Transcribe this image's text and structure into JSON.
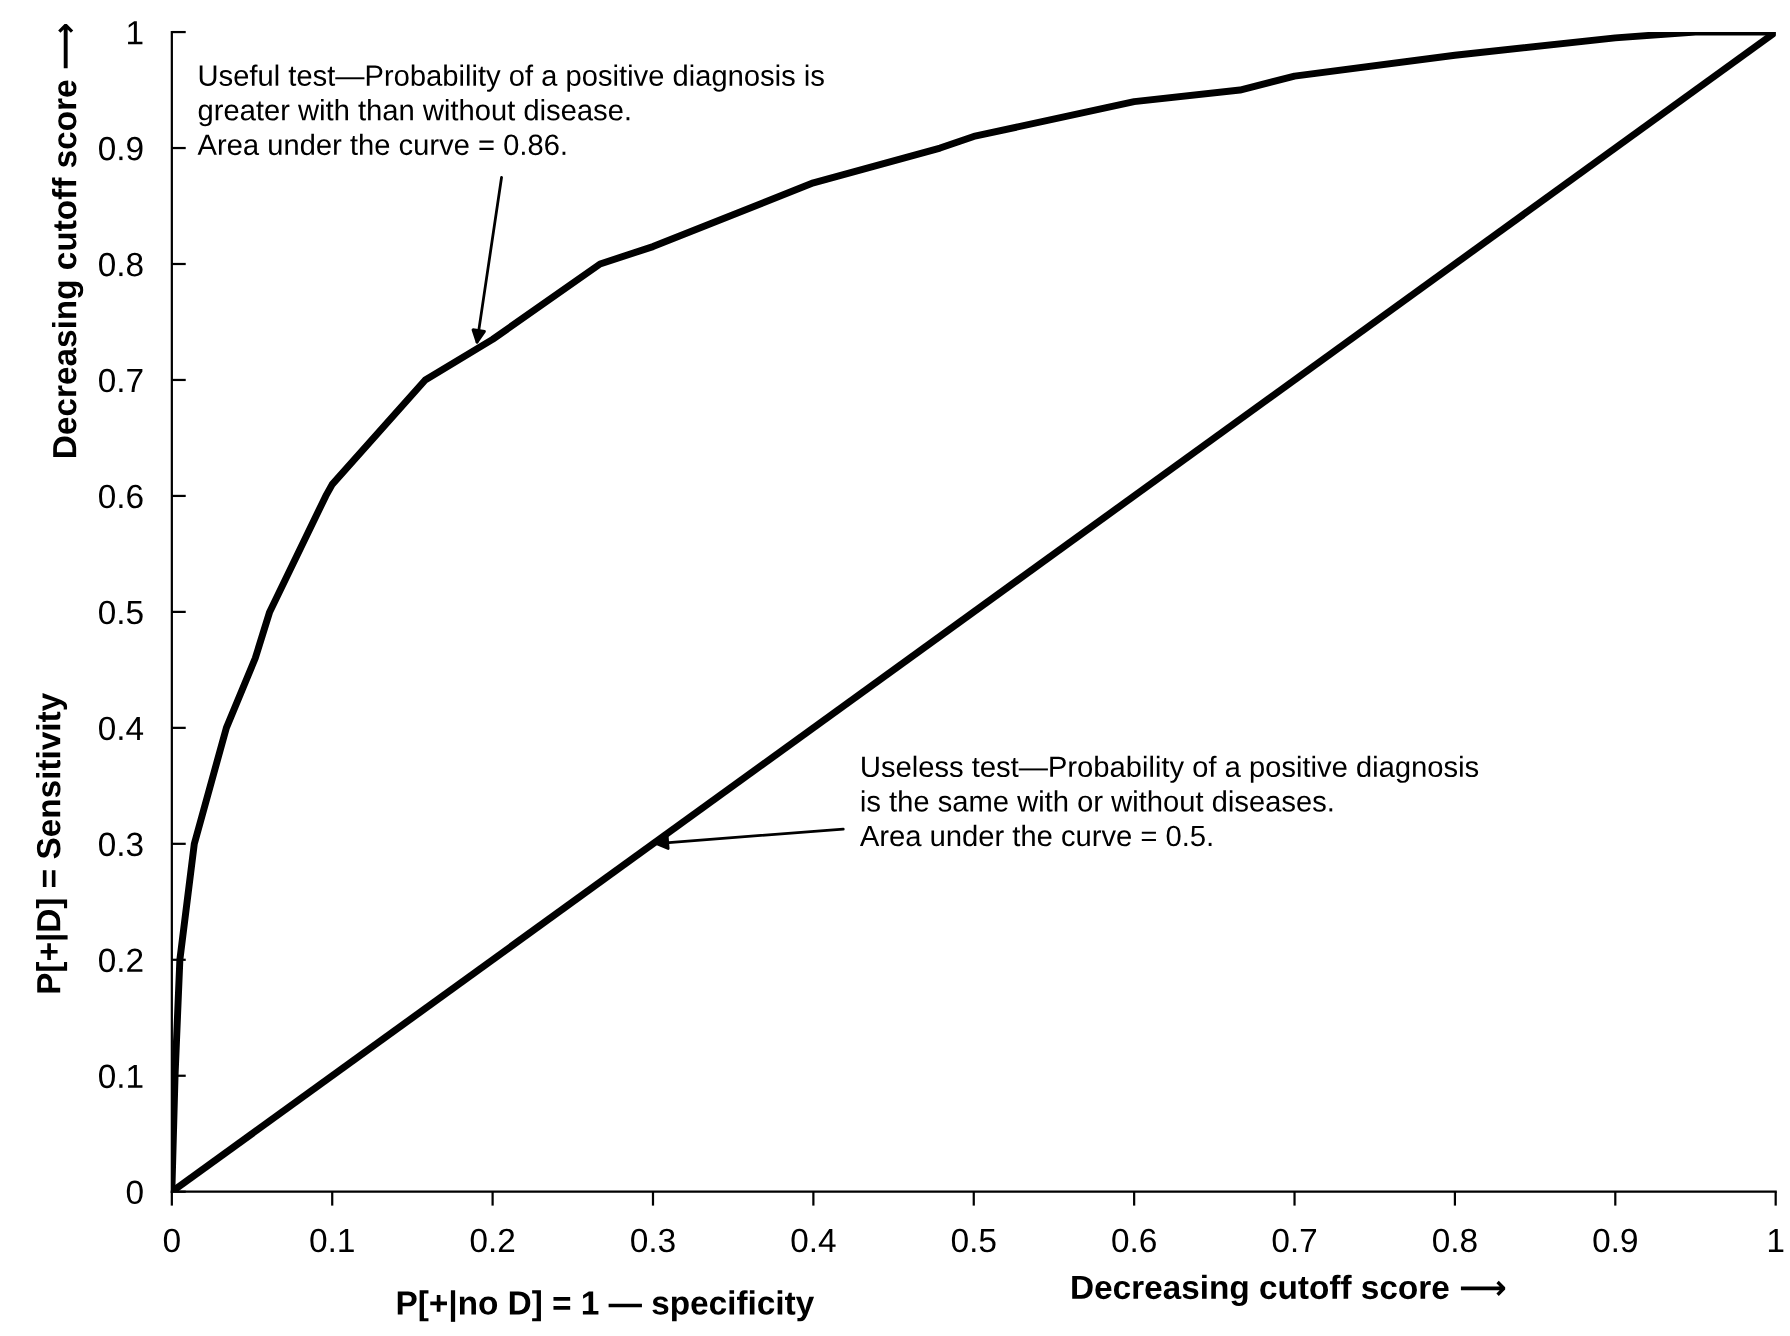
{
  "chart_data": {
    "type": "line",
    "xlabel": "P[+|no D] = 1 — specificity",
    "ylabel": "P[+|D] = Sensitivity",
    "series": [
      {
        "color": "#000000",
        "x": [
          0,
          0.002,
          0.005,
          0.014,
          0.034,
          0.052,
          0.061,
          0.096,
          0.1,
          0.158,
          0.2,
          0.267,
          0.3,
          0.4,
          0.479,
          0.5,
          0.6,
          0.666,
          0.7,
          0.8,
          0.9,
          0.95,
          1
        ],
        "values": [
          0,
          0.1,
          0.2,
          0.3,
          0.4,
          0.46,
          0.5,
          0.6,
          0.61,
          0.7,
          0.735,
          0.8,
          0.815,
          0.87,
          0.9,
          0.91,
          0.94,
          0.95,
          0.962,
          0.98,
          0.995,
          1,
          1
        ]
      },
      {
        "color": "#000000",
        "x": [
          0,
          1
        ],
        "values": [
          0,
          1
        ]
      }
    ],
    "xlim": [
      0,
      1
    ],
    "ylim": [
      0,
      1
    ],
    "xticks": [
      0,
      0.1,
      0.2,
      0.3,
      0.4,
      0.5,
      0.6,
      0.7,
      0.8,
      0.9,
      1
    ],
    "yticks": [
      0,
      0.1,
      0.2,
      0.3,
      0.4,
      0.5,
      0.6,
      0.7,
      0.8,
      0.9,
      1
    ],
    "grid": false,
    "legend": false,
    "marker": "none",
    "line_style": "solid",
    "annotations": [
      {
        "text": "Useful test—Probability of a positive diagnosis is\ngreater with than without disease.\nArea under the curve = 0.86.",
        "x": 0.19,
        "y": 0.73
      },
      {
        "text": "Useless test—Probability of a positive diagnosis\nis the same with or without diseases.\nArea under the curve = 0.5.",
        "x": 0.3,
        "y": 0.3
      },
      "Decreasing cutoff score ⟶",
      "Decreasing cutoff score ⟶"
    ]
  }
}
